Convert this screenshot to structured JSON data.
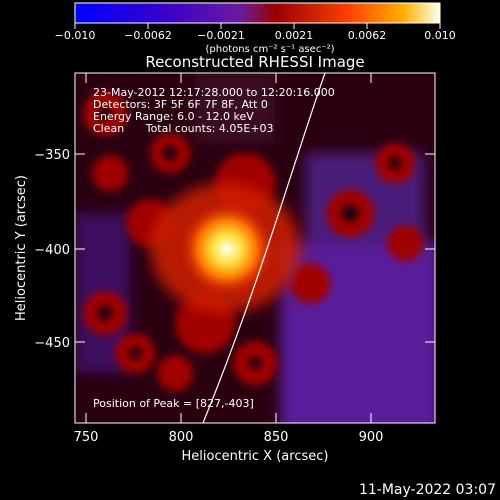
{
  "figure": {
    "title": "Reconstructed RHESSI Image",
    "colorbar": {
      "tick_labels": [
        "−0.010",
        "−0.0062",
        "−0.0021",
        "0.0021",
        "0.0062",
        "0.010"
      ],
      "unit_label": "(photons cm⁻² s⁻¹ asec⁻²)"
    },
    "info": {
      "time_line": "23-May-2012 12:17:28.000 to 12:20:16.000",
      "detectors_line": "Detectors: 3F 5F 6F 7F 8F, Att 0",
      "energy_line": "Energy Range: 6.0 - 12.0 keV",
      "clean_label": "Clean",
      "counts_line": "Total counts: 4.05E+03"
    },
    "peak_label": "Position of Peak = [827,-403]",
    "axes": {
      "xlabel": "Heliocentric X (arcsec)",
      "ylabel": "Heliocentric Y (arcsec)",
      "xticks": [
        "750",
        "800",
        "850",
        "900"
      ],
      "yticks": [
        "−350",
        "−400",
        "−450"
      ],
      "xrange_arcsec": [
        744,
        934
      ],
      "yrange_arcsec": [
        -495,
        -307
      ]
    },
    "footer_timestamp": "11-May-2022 03:07",
    "colors": {
      "background": "#000000",
      "foreground": "#ffffff",
      "colormap": [
        "#0000ff",
        "#4b0082",
        "#7a2a9a",
        "#b00000",
        "#ff3300",
        "#ffcc00",
        "#ffffff"
      ]
    }
  }
}
